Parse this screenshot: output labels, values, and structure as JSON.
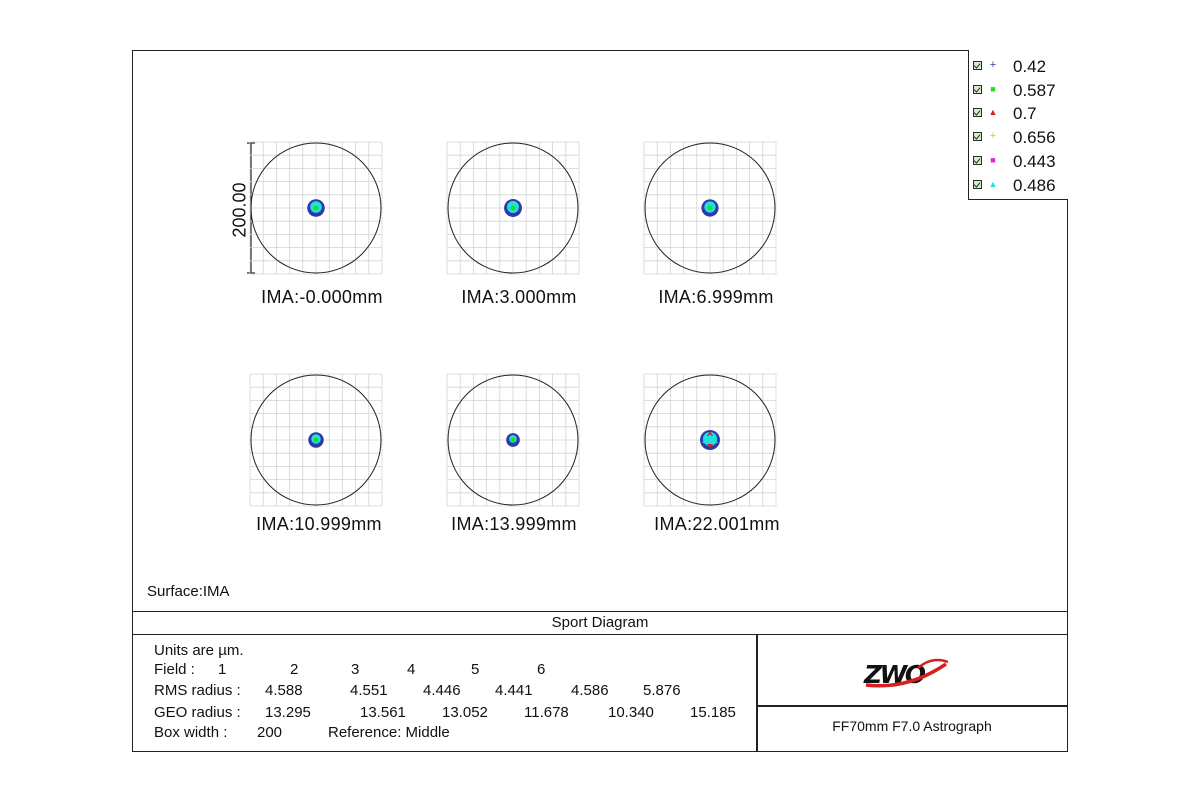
{
  "chart_data": {
    "type": "scatter",
    "title": "Sport Diagram",
    "surface": "Surface:IMA",
    "scale_bar_label": "200.00",
    "box_width": 200,
    "units": "µm",
    "fields": [
      {
        "number": 1,
        "label": "IMA:-0.000mm",
        "rms_radius": 4.588,
        "geo_radius": 13.295
      },
      {
        "number": 2,
        "label": "IMA:3.000mm",
        "rms_radius": 4.551,
        "geo_radius": 13.561
      },
      {
        "number": 3,
        "label": "IMA:6.999mm",
        "rms_radius": 4.446,
        "geo_radius": 13.052
      },
      {
        "number": 4,
        "label": "IMA:10.999mm",
        "rms_radius": 4.441,
        "geo_radius": 11.678
      },
      {
        "number": 5,
        "label": "IMA:13.999mm",
        "rms_radius": 4.586,
        "geo_radius": 10.34
      },
      {
        "number": 6,
        "label": "IMA:22.001mm",
        "rms_radius": 5.876,
        "geo_radius": 15.185
      }
    ],
    "wavelengths": [
      {
        "value": "0.42",
        "marker": "+",
        "color": "#2f3aa8"
      },
      {
        "value": "0.587",
        "marker": "■",
        "color": "#22dd22"
      },
      {
        "value": "0.7",
        "marker": "▲",
        "color": "#d42020"
      },
      {
        "value": "0.656",
        "marker": "+",
        "color": "#c8d020"
      },
      {
        "value": "0.443",
        "marker": "■",
        "color": "#e020e0"
      },
      {
        "value": "0.486",
        "marker": "▲",
        "color": "#20e0e0"
      }
    ],
    "grid": true,
    "legend_placement": "top-right"
  },
  "info": {
    "units_line": "Units are µm.",
    "field_label": "Field :",
    "field_numbers": [
      "1",
      "2",
      "3",
      "4",
      "5",
      "6"
    ],
    "rms_label": "RMS radius :",
    "rms_values": [
      "4.588",
      "4.551",
      "4.446",
      "4.441",
      "4.586",
      "5.876"
    ],
    "geo_label": "GEO radius :",
    "geo_values": [
      "13.295",
      "13.561",
      "13.052",
      "11.678",
      "10.340",
      "15.185"
    ],
    "box_width_label": "Box width :",
    "box_width_value": "200",
    "reference": "Reference: Middle"
  },
  "brand": {
    "logo_text": "ZWO",
    "product": "FF70mm F7.0 Astrograph"
  }
}
